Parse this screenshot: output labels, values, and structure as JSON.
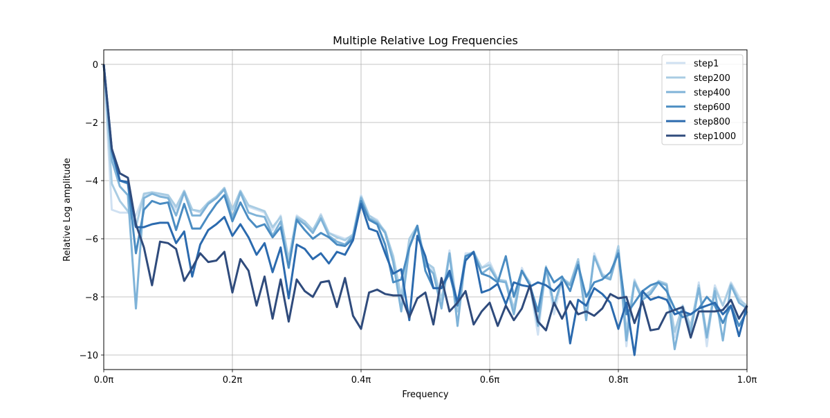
{
  "chart_data": {
    "type": "line",
    "title": "Multiple Relative Log Frequencies",
    "xlabel": "Frequency",
    "ylabel": "Relative Log amplitude",
    "xlim": [
      0,
      1
    ],
    "ylim": [
      -10.5,
      0.5
    ],
    "x_ticks": [
      0,
      0.2,
      0.4,
      0.6,
      0.8,
      1.0
    ],
    "x_tick_labels": [
      "0.0π",
      "0.2π",
      "0.4π",
      "0.6π",
      "0.8π",
      "1.0π"
    ],
    "y_ticks": [
      0,
      -2,
      -4,
      -6,
      -8,
      -10
    ],
    "y_tick_labels": [
      "0",
      "−2",
      "−4",
      "−6",
      "−8",
      "−10"
    ],
    "grid": true,
    "legend_position": "upper-right",
    "x": [
      0.0,
      0.0125,
      0.025,
      0.0375,
      0.05,
      0.0625,
      0.075,
      0.0875,
      0.1,
      0.1125,
      0.125,
      0.1375,
      0.15,
      0.1625,
      0.175,
      0.1875,
      0.2,
      0.2125,
      0.225,
      0.2375,
      0.25,
      0.2625,
      0.275,
      0.2875,
      0.3,
      0.3125,
      0.325,
      0.3375,
      0.35,
      0.3625,
      0.375,
      0.3875,
      0.4,
      0.4125,
      0.425,
      0.4375,
      0.45,
      0.4625,
      0.475,
      0.4875,
      0.5,
      0.5125,
      0.525,
      0.5375,
      0.55,
      0.5625,
      0.575,
      0.5875,
      0.6,
      0.6125,
      0.625,
      0.6375,
      0.65,
      0.6625,
      0.675,
      0.6875,
      0.7,
      0.7125,
      0.725,
      0.7375,
      0.75,
      0.7625,
      0.775,
      0.7875,
      0.8,
      0.8125,
      0.825,
      0.8375,
      0.85,
      0.8625,
      0.875,
      0.8875,
      0.9,
      0.9125,
      0.925,
      0.9375,
      0.95,
      0.9625,
      0.975,
      0.9875,
      1.0
    ],
    "series": [
      {
        "name": "step1",
        "color": "#d0e1f2",
        "values": [
          0,
          -5.0,
          -5.1,
          -5.1,
          -5.2,
          -4.5,
          -4.45,
          -4.5,
          -4.55,
          -5.0,
          -4.35,
          -5.0,
          -5.1,
          -4.8,
          -4.6,
          -4.25,
          -5.0,
          -4.35,
          -4.9,
          -5.0,
          -5.1,
          -5.7,
          -5.2,
          -6.8,
          -5.2,
          -5.4,
          -5.75,
          -5.15,
          -5.8,
          -5.9,
          -6.0,
          -5.9,
          -4.5,
          -5.2,
          -5.35,
          -5.8,
          -6.6,
          -8.3,
          -6.2,
          -5.6,
          -6.8,
          -7.1,
          -8.3,
          -6.4,
          -8.4,
          -6.5,
          -6.5,
          -7.0,
          -6.8,
          -7.4,
          -7.5,
          -8.5,
          -7.0,
          -7.6,
          -9.3,
          -7.0,
          -8.6,
          -7.4,
          -7.6,
          -6.7,
          -8.8,
          -6.5,
          -7.2,
          -7.4,
          -6.3,
          -9.7,
          -7.4,
          -8.1,
          -7.8,
          -7.5,
          -7.6,
          -9.4,
          -8.3,
          -9.2,
          -7.5,
          -9.7,
          -7.6,
          -8.3,
          -7.5,
          -8.0,
          -8.4
        ]
      },
      {
        "name": "step200",
        "color": "#a9cce3",
        "values": [
          0,
          -4.1,
          -4.7,
          -5.05,
          -5.6,
          -4.45,
          -4.4,
          -4.45,
          -4.5,
          -4.9,
          -4.35,
          -5.0,
          -5.05,
          -4.75,
          -4.55,
          -4.25,
          -5.0,
          -4.35,
          -4.85,
          -4.95,
          -5.05,
          -5.6,
          -5.25,
          -6.7,
          -5.25,
          -5.4,
          -5.7,
          -5.2,
          -5.8,
          -5.95,
          -6.05,
          -5.85,
          -4.55,
          -5.2,
          -5.4,
          -5.75,
          -6.6,
          -8.0,
          -6.0,
          -5.55,
          -6.8,
          -7.0,
          -8.1,
          -6.5,
          -8.5,
          -6.6,
          -6.45,
          -7.0,
          -6.9,
          -7.4,
          -7.45,
          -8.4,
          -7.1,
          -7.5,
          -8.9,
          -6.95,
          -8.3,
          -7.35,
          -7.55,
          -6.7,
          -8.7,
          -6.6,
          -7.25,
          -7.35,
          -6.25,
          -9.2,
          -7.45,
          -8.0,
          -7.8,
          -7.45,
          -7.55,
          -9.2,
          -8.3,
          -9.0,
          -7.6,
          -9.3,
          -7.7,
          -8.3,
          -7.55,
          -8.1,
          -8.3
        ]
      },
      {
        "name": "step400",
        "color": "#7fb3d8",
        "values": [
          0,
          -3.3,
          -4.2,
          -4.5,
          -8.4,
          -4.6,
          -4.45,
          -4.55,
          -4.6,
          -5.2,
          -4.4,
          -5.2,
          -5.2,
          -4.8,
          -4.6,
          -4.3,
          -5.3,
          -4.4,
          -5.1,
          -5.2,
          -5.25,
          -5.9,
          -5.4,
          -7.0,
          -5.3,
          -5.5,
          -5.8,
          -5.3,
          -5.9,
          -6.1,
          -6.2,
          -5.9,
          -4.6,
          -5.3,
          -5.45,
          -5.8,
          -6.8,
          -8.5,
          -6.3,
          -5.6,
          -6.9,
          -7.2,
          -8.4,
          -6.5,
          -9.0,
          -6.6,
          -6.45,
          -7.2,
          -7.0,
          -7.45,
          -7.5,
          -8.6,
          -7.1,
          -7.6,
          -9.0,
          -7.0,
          -8.3,
          -7.4,
          -7.6,
          -6.8,
          -8.8,
          -6.6,
          -7.3,
          -7.4,
          -6.4,
          -9.5,
          -7.5,
          -8.1,
          -7.9,
          -7.5,
          -7.6,
          -9.8,
          -8.4,
          -9.2,
          -7.7,
          -9.4,
          -7.8,
          -9.5,
          -7.6,
          -8.2,
          -8.4
        ]
      },
      {
        "name": "step600",
        "color": "#4a8cc2",
        "values": [
          0,
          -3.0,
          -4.0,
          -4.1,
          -6.5,
          -5.0,
          -4.7,
          -4.8,
          -4.75,
          -5.7,
          -4.8,
          -5.65,
          -5.65,
          -5.2,
          -4.8,
          -4.5,
          -5.4,
          -4.75,
          -5.3,
          -5.6,
          -5.5,
          -5.95,
          -5.6,
          -7.0,
          -5.35,
          -5.7,
          -6.0,
          -5.8,
          -5.95,
          -6.2,
          -6.25,
          -6.0,
          -4.7,
          -5.35,
          -5.5,
          -6.2,
          -7.5,
          -7.4,
          -6.3,
          -5.55,
          -7.1,
          -7.7,
          -7.7,
          -7.2,
          -8.3,
          -6.6,
          -6.5,
          -7.2,
          -7.3,
          -7.5,
          -6.6,
          -8.0,
          -7.1,
          -7.6,
          -8.5,
          -7.0,
          -7.5,
          -7.3,
          -7.8,
          -6.9,
          -8.0,
          -7.5,
          -7.4,
          -7.15,
          -6.5,
          -8.6,
          -8.2,
          -7.8,
          -7.6,
          -7.5,
          -7.8,
          -8.4,
          -8.7,
          -8.6,
          -8.4,
          -8.0,
          -8.3,
          -8.9,
          -8.3,
          -9.0,
          -8.5
        ]
      },
      {
        "name": "step800",
        "color": "#2b6aae",
        "values": [
          0,
          -2.9,
          -4.0,
          -4.05,
          -5.6,
          -5.6,
          -5.5,
          -5.45,
          -5.45,
          -6.15,
          -5.75,
          -7.3,
          -6.2,
          -5.7,
          -5.5,
          -5.25,
          -5.9,
          -5.5,
          -5.95,
          -6.55,
          -6.15,
          -7.15,
          -6.3,
          -8.05,
          -6.2,
          -6.35,
          -6.7,
          -6.5,
          -6.85,
          -6.45,
          -6.55,
          -6.05,
          -4.8,
          -5.65,
          -5.75,
          -6.5,
          -7.2,
          -7.05,
          -8.8,
          -5.9,
          -6.6,
          -7.7,
          -7.7,
          -7.1,
          -8.2,
          -6.75,
          -6.45,
          -7.85,
          -7.75,
          -7.55,
          -8.25,
          -7.5,
          -7.6,
          -7.65,
          -7.5,
          -7.6,
          -7.8,
          -7.5,
          -9.6,
          -8.1,
          -8.3,
          -7.7,
          -7.9,
          -8.2,
          -9.1,
          -8.2,
          -10.0,
          -7.8,
          -8.1,
          -8.0,
          -8.1,
          -8.6,
          -8.5,
          -8.6,
          -8.4,
          -8.3,
          -8.2,
          -8.6,
          -8.3,
          -9.35,
          -8.3
        ]
      },
      {
        "name": "step1000",
        "color": "#2f4b7c",
        "values": [
          0,
          -2.9,
          -3.75,
          -3.9,
          -5.5,
          -6.3,
          -7.6,
          -6.1,
          -6.15,
          -6.35,
          -7.45,
          -7.0,
          -6.5,
          -6.8,
          -6.75,
          -6.45,
          -7.85,
          -6.7,
          -7.1,
          -8.3,
          -7.3,
          -8.75,
          -7.4,
          -8.85,
          -7.4,
          -7.8,
          -8.0,
          -7.5,
          -7.45,
          -8.35,
          -7.35,
          -8.65,
          -9.1,
          -7.85,
          -7.75,
          -7.9,
          -7.95,
          -7.95,
          -8.7,
          -8.05,
          -7.85,
          -8.95,
          -7.35,
          -8.5,
          -8.2,
          -7.8,
          -8.95,
          -8.5,
          -8.2,
          -9.0,
          -8.3,
          -8.8,
          -8.4,
          -7.6,
          -8.85,
          -9.15,
          -8.2,
          -8.75,
          -8.15,
          -8.6,
          -8.5,
          -8.65,
          -8.4,
          -7.9,
          -8.05,
          -8.0,
          -8.9,
          -8.15,
          -9.15,
          -9.1,
          -8.55,
          -8.45,
          -8.35,
          -9.4,
          -8.5,
          -8.5,
          -8.5,
          -8.45,
          -8.1,
          -8.75,
          -8.3
        ]
      }
    ]
  }
}
